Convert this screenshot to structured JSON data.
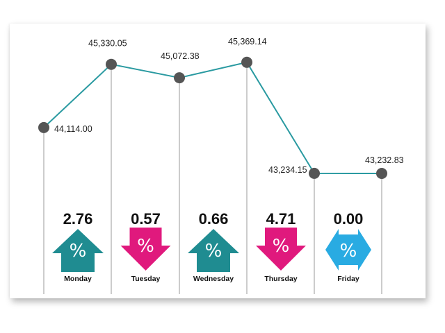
{
  "chart_data": {
    "type": "line",
    "categories": [
      "Monday",
      "Tuesday",
      "Wednesday",
      "Thursday",
      "Friday"
    ],
    "close_points": [
      {
        "value": 44114.0,
        "label": "44,114.00"
      },
      {
        "value": 45330.05,
        "label": "45,330.05"
      },
      {
        "value": 45072.38,
        "label": "45,072.38"
      },
      {
        "value": 45369.14,
        "label": "45,369.14"
      },
      {
        "value": 43234.15,
        "label": "43,234.15"
      },
      {
        "value": 43232.83,
        "label": "43,232.83"
      }
    ],
    "percent_changes": [
      {
        "day": "Monday",
        "value": "2.76",
        "direction": "up"
      },
      {
        "day": "Tuesday",
        "value": "0.57",
        "direction": "down"
      },
      {
        "day": "Wednesday",
        "value": "0.66",
        "direction": "up"
      },
      {
        "day": "Thursday",
        "value": "4.71",
        "direction": "down"
      },
      {
        "day": "Friday",
        "value": "0.00",
        "direction": "flat"
      }
    ],
    "percent_symbol": "%",
    "ylim": [
      43100,
      45500
    ],
    "grid": false,
    "colors": {
      "line": "#2a9aa1",
      "marker": "#555555",
      "up": "#1f8c91",
      "down": "#e0197d",
      "flat": "#29abe2",
      "divider": "#9a9a9a"
    }
  }
}
